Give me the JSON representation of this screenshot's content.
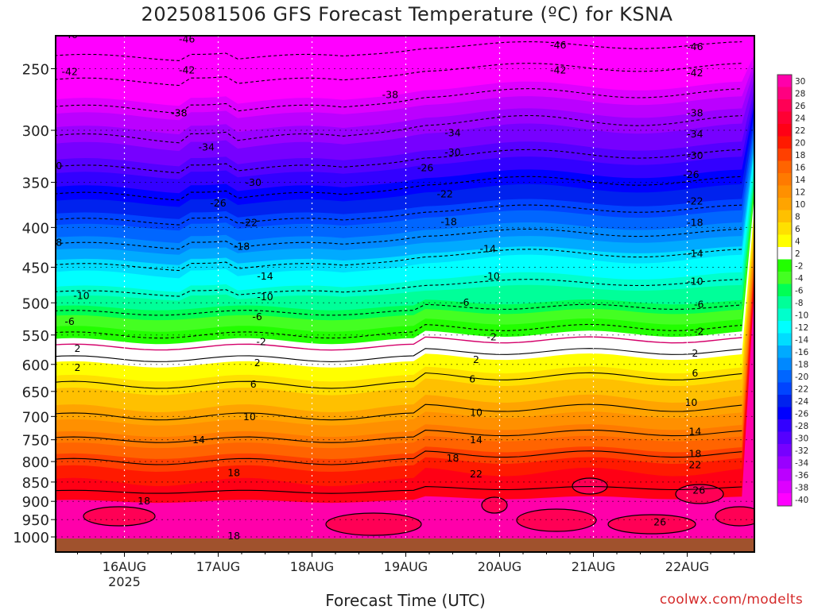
{
  "title": "2025081506 GFS Forecast Temperature (ºC) for KSNA",
  "credit": "coolwx.com/modelts",
  "chart_data": {
    "type": "heatmap",
    "title": "2025081506 GFS Forecast Temperature (ºC) for KSNA",
    "xlabel": "Forecast Time (UTC)",
    "ylabel": "",
    "y_scale": "log-pressure",
    "yticks": [
      250,
      300,
      350,
      400,
      450,
      500,
      550,
      600,
      650,
      700,
      750,
      800,
      850,
      900,
      950,
      1000
    ],
    "xticks": [
      {
        "label": "16AUG",
        "sub": "2025",
        "t": 24
      },
      {
        "label": "17AUG",
        "sub": "",
        "t": 48
      },
      {
        "label": "18AUG",
        "sub": "",
        "t": 72
      },
      {
        "label": "19AUG",
        "sub": "",
        "t": 96
      },
      {
        "label": "20AUG",
        "sub": "",
        "t": 120
      },
      {
        "label": "21AUG",
        "sub": "",
        "t": 144
      },
      {
        "label": "22AUG",
        "sub": "",
        "t": 168
      }
    ],
    "xlim": [
      0,
      183
    ],
    "ylim": [
      1020,
      200
    ],
    "colorbar": {
      "labels": [
        "30",
        "28",
        "26",
        "24",
        "22",
        "20",
        "18",
        "16",
        "14",
        "12",
        "10",
        "8",
        "6",
        "4",
        "2",
        "-2",
        "-4",
        "-6",
        "-8",
        "-10",
        "-12",
        "-14",
        "-16",
        "-18",
        "-20",
        "-22",
        "-24",
        "-26",
        "-28",
        "-30",
        "-32",
        "-34",
        "-36",
        "-38",
        "-40"
      ],
      "colors": [
        "#ff00aa",
        "#ff0080",
        "#ff0055",
        "#ff0033",
        "#ff0015",
        "#ff1a00",
        "#ff4000",
        "#ff6400",
        "#ff7a00",
        "#ff9000",
        "#ffa400",
        "#ffc000",
        "#ffe000",
        "#ffff00",
        "#ffffff",
        "#22ff00",
        "#44ff22",
        "#00ff55",
        "#00ff99",
        "#00ffcc",
        "#00ffff",
        "#00ddff",
        "#00aaff",
        "#0088ff",
        "#0066ff",
        "#0044ff",
        "#0022ee",
        "#0000ff",
        "#3300ff",
        "#5500ff",
        "#7700ff",
        "#9900ff",
        "#bb00ff",
        "#dd00ff",
        "#ff00ff"
      ]
    },
    "profile": [
      {
        "p": 200,
        "t": -54
      },
      {
        "p": 230,
        "t": -49
      },
      {
        "p": 250,
        "t": -44
      },
      {
        "p": 270,
        "t": -40
      },
      {
        "p": 300,
        "t": -35
      },
      {
        "p": 330,
        "t": -31
      },
      {
        "p": 350,
        "t": -28
      },
      {
        "p": 380,
        "t": -24
      },
      {
        "p": 400,
        "t": -21
      },
      {
        "p": 430,
        "t": -17
      },
      {
        "p": 450,
        "t": -14
      },
      {
        "p": 480,
        "t": -11
      },
      {
        "p": 500,
        "t": -8
      },
      {
        "p": 530,
        "t": -4
      },
      {
        "p": 550,
        "t": -2
      },
      {
        "p": 580,
        "t": 1
      },
      {
        "p": 600,
        "t": 3
      },
      {
        "p": 650,
        "t": 7
      },
      {
        "p": 700,
        "t": 10
      },
      {
        "p": 750,
        "t": 14
      },
      {
        "p": 800,
        "t": 18
      },
      {
        "p": 850,
        "t": 21
      },
      {
        "p": 900,
        "t": 23
      },
      {
        "p": 950,
        "t": 22
      },
      {
        "p": 1000,
        "t": 19
      },
      {
        "p": 1020,
        "t": 19
      }
    ],
    "contour_levels": [
      -50,
      -46,
      -42,
      -38,
      -34,
      -30,
      -26,
      -22,
      -18,
      -14,
      -10,
      -6,
      -2,
      2,
      6,
      10,
      14,
      18,
      22,
      26
    ],
    "contour_labels": [
      {
        "v": "-50",
        "t": 38,
        "p": 208
      },
      {
        "v": "-50",
        "t": 135,
        "p": 212
      },
      {
        "v": "-50",
        "t": 170,
        "p": 213
      },
      {
        "v": "-46",
        "t": 10,
        "p": 226
      },
      {
        "v": "-46",
        "t": 40,
        "p": 229
      },
      {
        "v": "-46",
        "t": 135,
        "p": 233
      },
      {
        "v": "-46",
        "t": 170,
        "p": 234
      },
      {
        "v": "-42",
        "t": 10,
        "p": 252
      },
      {
        "v": "-42",
        "t": 40,
        "p": 251
      },
      {
        "v": "-42",
        "t": 135,
        "p": 251
      },
      {
        "v": "-42",
        "t": 170,
        "p": 253
      },
      {
        "v": "-38",
        "t": 38,
        "p": 285
      },
      {
        "v": "-38",
        "t": 92,
        "p": 270
      },
      {
        "v": "-38",
        "t": 170,
        "p": 285
      },
      {
        "v": "-34",
        "t": 45,
        "p": 315
      },
      {
        "v": "-34",
        "t": 108,
        "p": 302
      },
      {
        "v": "-34",
        "t": 170,
        "p": 303
      },
      {
        "v": "-30",
        "t": 6,
        "p": 333
      },
      {
        "v": "-30",
        "t": 57,
        "p": 350
      },
      {
        "v": "-30",
        "t": 108,
        "p": 320
      },
      {
        "v": "-30",
        "t": 170,
        "p": 323
      },
      {
        "v": "-26",
        "t": 48,
        "p": 372
      },
      {
        "v": "-26",
        "t": 101,
        "p": 335
      },
      {
        "v": "-26",
        "t": 169,
        "p": 342
      },
      {
        "v": "-22",
        "t": 56,
        "p": 394
      },
      {
        "v": "-22",
        "t": 106,
        "p": 362
      },
      {
        "v": "-22",
        "t": 170,
        "p": 370
      },
      {
        "v": "-18",
        "t": 6,
        "p": 418
      },
      {
        "v": "-18",
        "t": 54,
        "p": 423
      },
      {
        "v": "-18",
        "t": 107,
        "p": 393
      },
      {
        "v": "-18",
        "t": 170,
        "p": 394
      },
      {
        "v": "-14",
        "t": 60,
        "p": 462
      },
      {
        "v": "-14",
        "t": 117,
        "p": 426
      },
      {
        "v": "-14",
        "t": 170,
        "p": 432
      },
      {
        "v": "-10",
        "t": 13,
        "p": 489
      },
      {
        "v": "-10",
        "t": 60,
        "p": 491
      },
      {
        "v": "-10",
        "t": 118,
        "p": 462
      },
      {
        "v": "-10",
        "t": 170,
        "p": 469
      },
      {
        "v": "-6",
        "t": 10,
        "p": 528
      },
      {
        "v": "-6",
        "t": 58,
        "p": 521
      },
      {
        "v": "-6",
        "t": 111,
        "p": 499
      },
      {
        "v": "-6",
        "t": 171,
        "p": 502
      },
      {
        "v": "-2",
        "t": 59,
        "p": 561
      },
      {
        "v": "-2",
        "t": 118,
        "p": 553
      },
      {
        "v": "-2",
        "t": 171,
        "p": 544
      },
      {
        "v": "2",
        "t": 12,
        "p": 572
      },
      {
        "v": "2",
        "t": 12,
        "p": 605
      },
      {
        "v": "2",
        "t": 58,
        "p": 597
      },
      {
        "v": "2",
        "t": 114,
        "p": 591
      },
      {
        "v": "2",
        "t": 170,
        "p": 580
      },
      {
        "v": "6",
        "t": 57,
        "p": 636
      },
      {
        "v": "6",
        "t": 113,
        "p": 626
      },
      {
        "v": "6",
        "t": 170,
        "p": 615
      },
      {
        "v": "10",
        "t": 56,
        "p": 700
      },
      {
        "v": "10",
        "t": 114,
        "p": 691
      },
      {
        "v": "10",
        "t": 169,
        "p": 671
      },
      {
        "v": "14",
        "t": 43,
        "p": 750
      },
      {
        "v": "14",
        "t": 114,
        "p": 750
      },
      {
        "v": "14",
        "t": 170,
        "p": 731
      },
      {
        "v": "18",
        "t": 52,
        "p": 827
      },
      {
        "v": "18",
        "t": 29,
        "p": 898
      },
      {
        "v": "18",
        "t": 52,
        "p": 996
      },
      {
        "v": "18",
        "t": 2,
        "p": 1000
      },
      {
        "v": "18",
        "t": 108,
        "p": 791
      },
      {
        "v": "18",
        "t": 170,
        "p": 781
      },
      {
        "v": "22",
        "t": 114,
        "p": 829
      },
      {
        "v": "22",
        "t": 170,
        "p": 807
      },
      {
        "v": "26",
        "t": 171,
        "p": 870
      },
      {
        "v": "26",
        "t": 161,
        "p": 956
      }
    ]
  }
}
